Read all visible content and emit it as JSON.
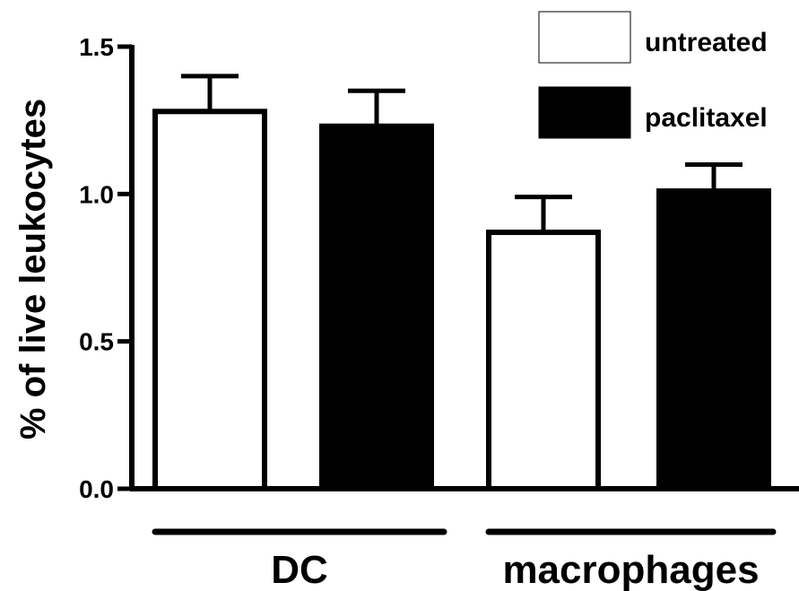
{
  "chart_data": {
    "type": "bar",
    "ylabel": "% of live leukocytes",
    "ylim": [
      0,
      1.5
    ],
    "yticks": [
      "0.0",
      "0.5",
      "1.0",
      "1.5"
    ],
    "groups": [
      "DC",
      "macrophages"
    ],
    "legend_position": "top-right",
    "series": [
      {
        "name": "untreated",
        "color": "#ffffff",
        "values": [
          1.28,
          0.87
        ],
        "errors": [
          0.12,
          0.12
        ]
      },
      {
        "name": "paclitaxel",
        "color": "#000000",
        "values": [
          1.23,
          1.01
        ],
        "errors": [
          0.12,
          0.09
        ]
      }
    ]
  }
}
